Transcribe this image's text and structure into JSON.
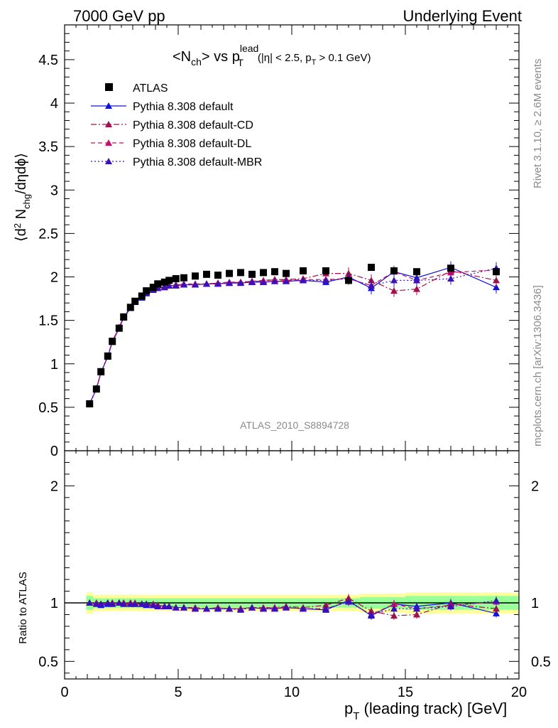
{
  "header": {
    "left": "7000 GeV pp",
    "right": "Underlying Event"
  },
  "side_labels": {
    "rivet": "Rivet 3.1.10, ≥ 2.6M events",
    "mcplots": "mcplots.cern.ch [arXiv:1306.3436]"
  },
  "plot_title": {
    "main": "<N",
    "sub1": "ch",
    "mid": "> vs p",
    "sup": "lead",
    "sub2": "T",
    "cuts": "(|η| < 2.5, p",
    "cuts_sub": "T",
    "cuts_end": " > 0.1 GeV)"
  },
  "watermark": "ATLAS_2010_S8894728",
  "y_axis_top": "⟨d² Nₕₑ/dηdϕ⟩",
  "y_axis_bottom": "Ratio to ATLAS",
  "x_axis": "p",
  "x_axis_sub": "T",
  "x_axis_rest": " (leading track) [GeV]",
  "chart_data": {
    "type": "scatter",
    "xlim": [
      0,
      20
    ],
    "ylim_top": [
      0,
      4.9
    ],
    "ylim_ratio": [
      0.35,
      2.3
    ],
    "x_ticks": [
      "0",
      "5",
      "10",
      "15",
      "20"
    ],
    "y_ticks_top": [
      "0",
      "0.5",
      "1",
      "1.5",
      "2",
      "2.5",
      "3",
      "3.5",
      "4",
      "4.5"
    ],
    "y_ticks_ratio": [
      "0.5",
      "1",
      "2"
    ],
    "legend_position": "top-left",
    "x": [
      1.1,
      1.4,
      1.6,
      1.9,
      2.1,
      2.4,
      2.6,
      2.9,
      3.1,
      3.4,
      3.6,
      3.9,
      4.1,
      4.4,
      4.6,
      4.9,
      5.25,
      5.75,
      6.25,
      6.75,
      7.25,
      7.75,
      8.25,
      8.75,
      9.25,
      9.75,
      10.5,
      11.5,
      12.5,
      13.5,
      14.5,
      15.5,
      17.0,
      19.0
    ],
    "series": [
      {
        "name": "ATLAS",
        "marker": "square",
        "color": "#000000",
        "values": [
          0.54,
          0.71,
          0.91,
          1.09,
          1.26,
          1.41,
          1.54,
          1.65,
          1.72,
          1.78,
          1.84,
          1.88,
          1.92,
          1.94,
          1.96,
          1.98,
          1.99,
          2.01,
          2.03,
          2.02,
          2.04,
          2.05,
          2.03,
          2.05,
          2.06,
          2.04,
          2.07,
          2.07,
          1.96,
          2.11,
          2.07,
          2.06,
          2.1,
          2.06
        ],
        "ratio": [
          1,
          1,
          1,
          1,
          1,
          1,
          1,
          1,
          1,
          1,
          1,
          1,
          1,
          1,
          1,
          1,
          1,
          1,
          1,
          1,
          1,
          1,
          1,
          1,
          1,
          1,
          1,
          1,
          1,
          1,
          1,
          1,
          1,
          1
        ],
        "band_inner": [
          0.06,
          0.04,
          0.04,
          0.04,
          0.04,
          0.04,
          0.04,
          0.04,
          0.04,
          0.04,
          0.04,
          0.04,
          0.04,
          0.04,
          0.04,
          0.04,
          0.04,
          0.04,
          0.04,
          0.04,
          0.04,
          0.04,
          0.04,
          0.04,
          0.04,
          0.04,
          0.04,
          0.04,
          0.04,
          0.05,
          0.05,
          0.06,
          0.06,
          0.06
        ],
        "band_outer": [
          0.09,
          0.07,
          0.07,
          0.07,
          0.07,
          0.07,
          0.07,
          0.07,
          0.07,
          0.07,
          0.07,
          0.07,
          0.07,
          0.07,
          0.07,
          0.07,
          0.07,
          0.07,
          0.07,
          0.07,
          0.07,
          0.07,
          0.07,
          0.07,
          0.07,
          0.07,
          0.07,
          0.07,
          0.07,
          0.08,
          0.08,
          0.09,
          0.09,
          0.09
        ]
      },
      {
        "name": "Pythia 8.308 default",
        "marker": "triangle",
        "line": "solid",
        "color": "#1010dd",
        "values": [
          0.54,
          0.71,
          0.9,
          1.08,
          1.25,
          1.41,
          1.53,
          1.64,
          1.71,
          1.76,
          1.81,
          1.85,
          1.87,
          1.88,
          1.9,
          1.9,
          1.91,
          1.91,
          1.92,
          1.92,
          1.93,
          1.93,
          1.94,
          1.94,
          1.95,
          1.95,
          1.96,
          1.94,
          2.0,
          1.87,
          2.06,
          1.99,
          2.11,
          1.88
        ],
        "ratio": [
          1.0,
          0.99,
          0.98,
          0.99,
          0.99,
          1.0,
          0.99,
          0.99,
          0.99,
          0.99,
          0.98,
          0.98,
          0.98,
          0.97,
          0.97,
          0.96,
          0.96,
          0.95,
          0.95,
          0.95,
          0.95,
          0.95,
          0.96,
          0.95,
          0.95,
          0.96,
          0.95,
          0.94,
          1.02,
          0.89,
          0.99,
          0.97,
          1.0,
          0.91
        ]
      },
      {
        "name": "Pythia 8.308 default-CD",
        "marker": "triangle",
        "line": "dashdot",
        "color": "#a0104a",
        "values": [
          0.54,
          0.72,
          0.9,
          1.09,
          1.26,
          1.42,
          1.54,
          1.65,
          1.71,
          1.77,
          1.82,
          1.85,
          1.88,
          1.88,
          1.9,
          1.91,
          1.91,
          1.91,
          1.92,
          1.93,
          1.93,
          1.94,
          1.95,
          1.95,
          1.97,
          1.97,
          1.98,
          2.04,
          2.04,
          1.96,
          1.84,
          1.86,
          2.07,
          1.96
        ],
        "ratio": [
          1.0,
          1.0,
          0.99,
          1.0,
          1.0,
          1.0,
          1.0,
          1.0,
          0.99,
          0.99,
          0.99,
          0.98,
          0.98,
          0.97,
          0.97,
          0.96,
          0.96,
          0.95,
          0.95,
          0.96,
          0.95,
          0.95,
          0.96,
          0.95,
          0.96,
          0.97,
          0.96,
          0.98,
          1.04,
          0.93,
          0.89,
          0.9,
          0.99,
          0.95
        ]
      },
      {
        "name": "Pythia 8.308 default-DL",
        "marker": "triangle",
        "line": "dashed",
        "color": "#c0106a",
        "values": [
          0.54,
          0.71,
          0.9,
          1.09,
          1.26,
          1.42,
          1.54,
          1.65,
          1.72,
          1.77,
          1.82,
          1.86,
          1.88,
          1.89,
          1.9,
          1.91,
          1.92,
          1.92,
          1.92,
          1.93,
          1.94,
          1.94,
          1.95,
          1.96,
          1.97,
          1.96,
          1.97,
          1.97,
          1.98,
          1.9,
          2.06,
          1.96,
          2.05,
          2.08
        ],
        "ratio": [
          1.0,
          1.0,
          0.99,
          1.0,
          1.0,
          1.0,
          1.0,
          1.0,
          1.0,
          0.99,
          0.99,
          0.99,
          0.98,
          0.97,
          0.97,
          0.96,
          0.96,
          0.96,
          0.95,
          0.96,
          0.95,
          0.95,
          0.96,
          0.96,
          0.96,
          0.96,
          0.95,
          0.95,
          1.01,
          0.9,
          0.99,
          0.95,
          0.98,
          1.01
        ]
      },
      {
        "name": "Pythia 8.308 default-MBR",
        "marker": "triangle",
        "line": "dotted",
        "color": "#3a10bb",
        "values": [
          0.54,
          0.71,
          0.9,
          1.09,
          1.25,
          1.41,
          1.53,
          1.64,
          1.71,
          1.77,
          1.82,
          1.85,
          1.87,
          1.88,
          1.9,
          1.9,
          1.91,
          1.91,
          1.92,
          1.92,
          1.93,
          1.93,
          1.94,
          1.94,
          1.95,
          1.95,
          1.96,
          1.96,
          1.98,
          1.9,
          1.96,
          1.96,
          1.98,
          2.1
        ],
        "ratio": [
          1.0,
          0.99,
          0.99,
          1.0,
          0.99,
          1.0,
          0.99,
          0.99,
          0.99,
          0.99,
          0.99,
          0.98,
          0.97,
          0.97,
          0.97,
          0.96,
          0.96,
          0.95,
          0.95,
          0.95,
          0.95,
          0.94,
          0.96,
          0.95,
          0.95,
          0.96,
          0.95,
          0.95,
          1.01,
          0.9,
          0.95,
          0.95,
          0.97,
          1.02
        ]
      }
    ]
  }
}
